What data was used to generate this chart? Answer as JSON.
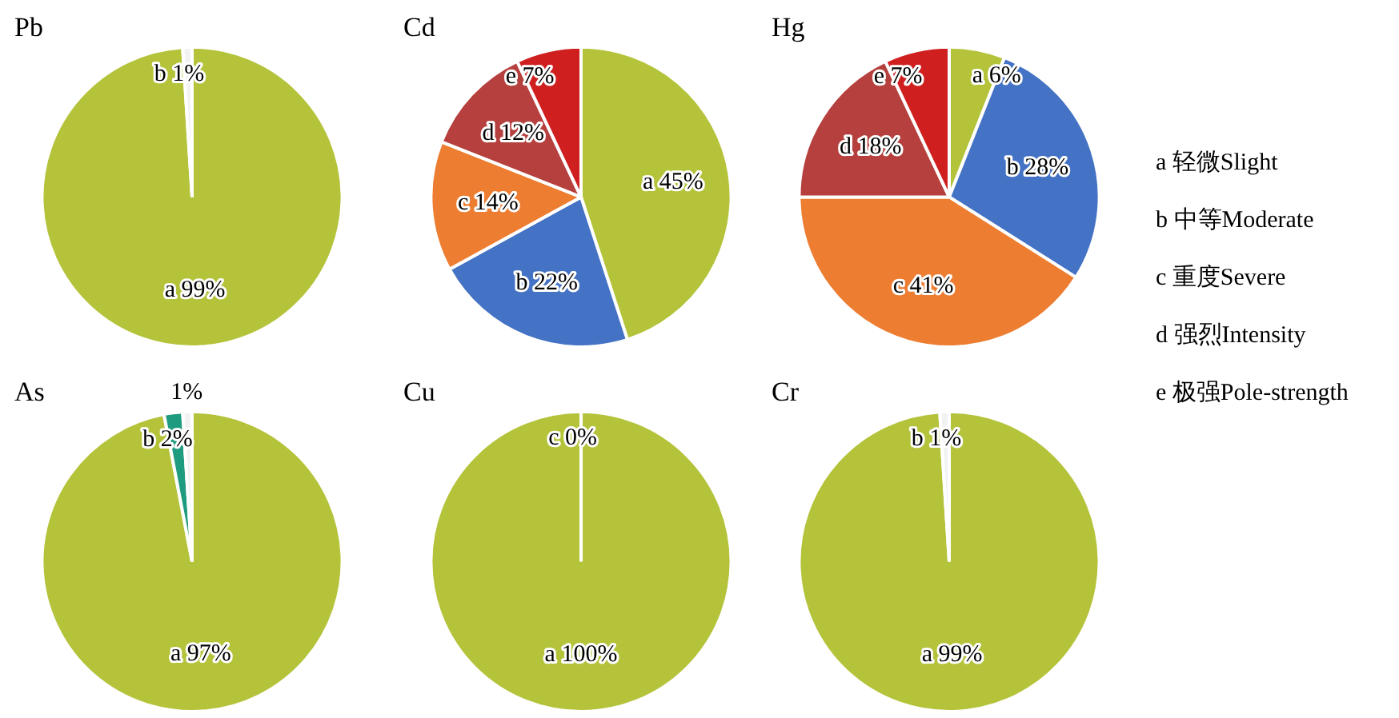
{
  "chart_data": [
    {
      "type": "pie",
      "title": "Pb",
      "categories": [
        "a",
        "b"
      ],
      "values": [
        99,
        1
      ],
      "colors": [
        "#b5c33b",
        "#f2f2f2"
      ],
      "value_labels": [
        "99%",
        "1%"
      ]
    },
    {
      "type": "pie",
      "title": "Cd",
      "categories": [
        "a",
        "b",
        "c",
        "d",
        "e"
      ],
      "values": [
        45,
        22,
        14,
        12,
        7
      ],
      "colors": [
        "#b5c33b",
        "#4472c4",
        "#ed7d31",
        "#b5403d",
        "#d01f1f"
      ],
      "value_labels": [
        "45%",
        "22%",
        "14%",
        "12%",
        "7%"
      ]
    },
    {
      "type": "pie",
      "title": "Hg",
      "categories": [
        "a",
        "b",
        "c",
        "d",
        "e"
      ],
      "values": [
        6,
        28,
        41,
        18,
        7
      ],
      "colors": [
        "#b5c33b",
        "#4472c4",
        "#ed7d31",
        "#b5403d",
        "#d01f1f"
      ],
      "value_labels": [
        "6%",
        "28%",
        "41%",
        "18%",
        "7%"
      ]
    },
    {
      "type": "pie",
      "title": "As",
      "categories": [
        "a",
        "b",
        null
      ],
      "values": [
        97,
        2,
        1
      ],
      "colors": [
        "#b5c33b",
        "#1f9b7f",
        "#f2f2f2"
      ],
      "value_labels": [
        "97%",
        "2%",
        "1%"
      ]
    },
    {
      "type": "pie",
      "title": "Cu",
      "categories": [
        "a",
        "c"
      ],
      "values": [
        100,
        0
      ],
      "colors": [
        "#b5c33b",
        "#f2f2f2"
      ],
      "value_labels": [
        "100%",
        "0%"
      ]
    },
    {
      "type": "pie",
      "title": "Cr",
      "categories": [
        "a",
        "b"
      ],
      "values": [
        99,
        1
      ],
      "colors": [
        "#b5c33b",
        "#f2f2f2"
      ],
      "value_labels": [
        "99%",
        "1%"
      ]
    },
    {
      "type": "other",
      "annotations": [
        "a 轻微Slight",
        "b 中等Moderate",
        "c 重度Severe",
        "d 强烈Intensity",
        "e 极强Pole-strength"
      ]
    }
  ]
}
